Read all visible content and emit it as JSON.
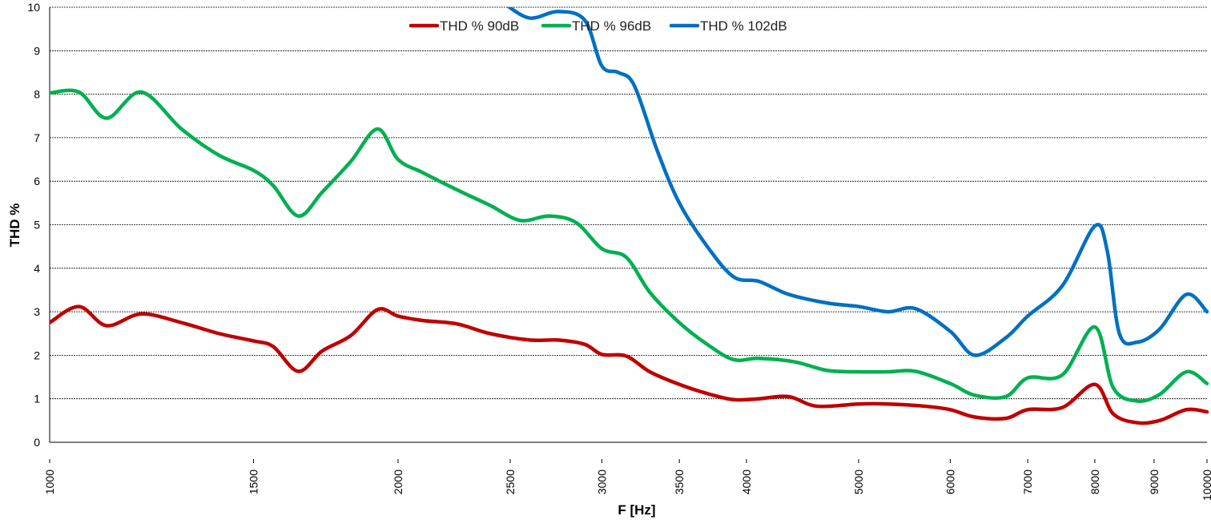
{
  "chart_data": {
    "type": "line",
    "xlabel": "F [Hz]",
    "ylabel": "THD %",
    "x_scale": "log",
    "xlim": [
      1000,
      10000
    ],
    "ylim": [
      0,
      10
    ],
    "y_ticks": [
      0,
      1,
      2,
      3,
      4,
      5,
      6,
      7,
      8,
      9,
      10
    ],
    "x_ticks": [
      1000,
      1500,
      2000,
      2500,
      3000,
      3500,
      4000,
      5000,
      6000,
      7000,
      8000,
      9000,
      10000
    ],
    "grid": "horizontal",
    "legend_position": "top-center",
    "series": [
      {
        "name": "THD % 90dB",
        "color": "#c00000",
        "points": [
          [
            1000,
            2.75
          ],
          [
            1060,
            3.12
          ],
          [
            1120,
            2.68
          ],
          [
            1200,
            2.95
          ],
          [
            1300,
            2.75
          ],
          [
            1400,
            2.5
          ],
          [
            1500,
            2.33
          ],
          [
            1560,
            2.2
          ],
          [
            1640,
            1.63
          ],
          [
            1720,
            2.1
          ],
          [
            1820,
            2.45
          ],
          [
            1920,
            3.05
          ],
          [
            2000,
            2.9
          ],
          [
            2100,
            2.8
          ],
          [
            2250,
            2.72
          ],
          [
            2400,
            2.5
          ],
          [
            2600,
            2.35
          ],
          [
            2750,
            2.35
          ],
          [
            2900,
            2.25
          ],
          [
            3000,
            2.02
          ],
          [
            3150,
            1.98
          ],
          [
            3300,
            1.62
          ],
          [
            3500,
            1.33
          ],
          [
            3700,
            1.12
          ],
          [
            3900,
            0.98
          ],
          [
            4100,
            1.0
          ],
          [
            4350,
            1.05
          ],
          [
            4600,
            0.83
          ],
          [
            5000,
            0.88
          ],
          [
            5300,
            0.88
          ],
          [
            5700,
            0.83
          ],
          [
            6000,
            0.75
          ],
          [
            6300,
            0.58
          ],
          [
            6700,
            0.55
          ],
          [
            7000,
            0.75
          ],
          [
            7500,
            0.8
          ],
          [
            8000,
            1.33
          ],
          [
            8300,
            0.65
          ],
          [
            8700,
            0.45
          ],
          [
            9100,
            0.5
          ],
          [
            9600,
            0.75
          ],
          [
            10000,
            0.7
          ]
        ]
      },
      {
        "name": "THD % 96dB",
        "color": "#00b050",
        "points": [
          [
            1000,
            8.03
          ],
          [
            1060,
            8.05
          ],
          [
            1120,
            7.45
          ],
          [
            1200,
            8.05
          ],
          [
            1300,
            7.2
          ],
          [
            1400,
            6.6
          ],
          [
            1500,
            6.25
          ],
          [
            1560,
            5.9
          ],
          [
            1640,
            5.2
          ],
          [
            1720,
            5.75
          ],
          [
            1820,
            6.45
          ],
          [
            1920,
            7.2
          ],
          [
            2000,
            6.5
          ],
          [
            2100,
            6.2
          ],
          [
            2250,
            5.8
          ],
          [
            2400,
            5.45
          ],
          [
            2550,
            5.1
          ],
          [
            2700,
            5.2
          ],
          [
            2850,
            5.05
          ],
          [
            3000,
            4.45
          ],
          [
            3150,
            4.25
          ],
          [
            3300,
            3.45
          ],
          [
            3500,
            2.75
          ],
          [
            3700,
            2.25
          ],
          [
            3900,
            1.9
          ],
          [
            4100,
            1.93
          ],
          [
            4400,
            1.85
          ],
          [
            4700,
            1.65
          ],
          [
            5000,
            1.62
          ],
          [
            5300,
            1.62
          ],
          [
            5600,
            1.63
          ],
          [
            6000,
            1.35
          ],
          [
            6300,
            1.08
          ],
          [
            6700,
            1.05
          ],
          [
            7000,
            1.48
          ],
          [
            7500,
            1.55
          ],
          [
            8000,
            2.65
          ],
          [
            8300,
            1.25
          ],
          [
            8700,
            0.95
          ],
          [
            9100,
            1.1
          ],
          [
            9600,
            1.62
          ],
          [
            10000,
            1.35
          ]
        ]
      },
      {
        "name": "THD % 102dB",
        "color": "#0070c0",
        "points": [
          [
            2480,
            10.05
          ],
          [
            2600,
            9.75
          ],
          [
            2750,
            9.9
          ],
          [
            2900,
            9.7
          ],
          [
            3000,
            8.65
          ],
          [
            3100,
            8.5
          ],
          [
            3200,
            8.2
          ],
          [
            3350,
            6.7
          ],
          [
            3500,
            5.5
          ],
          [
            3700,
            4.5
          ],
          [
            3900,
            3.8
          ],
          [
            4100,
            3.7
          ],
          [
            4350,
            3.4
          ],
          [
            4700,
            3.2
          ],
          [
            5000,
            3.12
          ],
          [
            5300,
            3.0
          ],
          [
            5600,
            3.07
          ],
          [
            6000,
            2.55
          ],
          [
            6300,
            2.0
          ],
          [
            6700,
            2.4
          ],
          [
            7000,
            2.9
          ],
          [
            7500,
            3.6
          ],
          [
            8000,
            4.97
          ],
          [
            8200,
            4.4
          ],
          [
            8400,
            2.5
          ],
          [
            8700,
            2.3
          ],
          [
            9100,
            2.6
          ],
          [
            9600,
            3.4
          ],
          [
            10000,
            3.0
          ]
        ]
      }
    ]
  }
}
